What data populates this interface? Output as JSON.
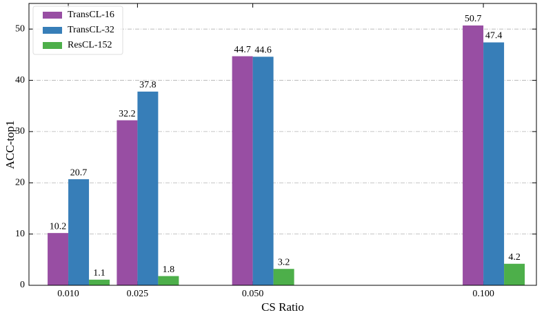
{
  "chart_data": {
    "type": "bar",
    "xlabel": "CS Ratio",
    "ylabel": "ACC-top1",
    "x": [
      0.01,
      0.025,
      0.05,
      0.1
    ],
    "series": [
      {
        "name": "TransCL-16",
        "color": "#984ea3",
        "values": [
          10.2,
          32.2,
          44.7,
          50.7
        ]
      },
      {
        "name": "TransCL-32",
        "color": "#377eb8",
        "values": [
          20.7,
          37.8,
          44.6,
          47.4
        ]
      },
      {
        "name": "ResCL-152",
        "color": "#4daf4a",
        "values": [
          1.1,
          1.8,
          3.2,
          4.2
        ]
      }
    ],
    "xlim": [
      0.00147,
      0.1115
    ],
    "xticks": [
      {
        "value": 0.01,
        "label": "0.010"
      },
      {
        "value": 0.025,
        "label": "0.025"
      },
      {
        "value": 0.05,
        "label": "0.050"
      },
      {
        "value": 0.1,
        "label": "0.100"
      }
    ],
    "ylim": [
      0,
      55
    ],
    "yticks": [
      0,
      10,
      20,
      30,
      40,
      50
    ],
    "grid": true,
    "legend": "upper-left"
  }
}
